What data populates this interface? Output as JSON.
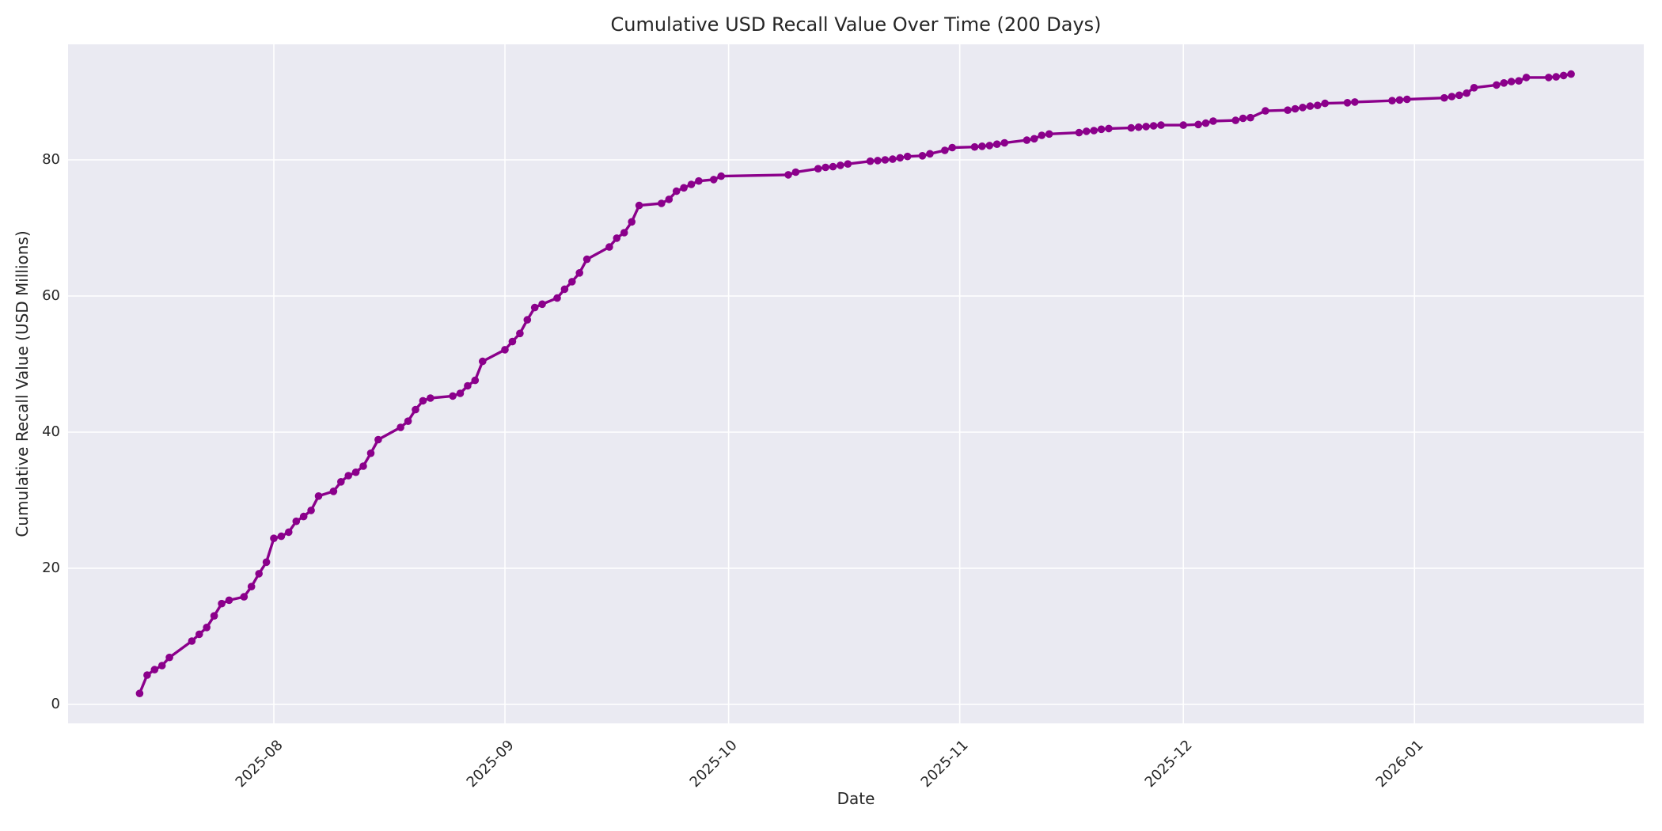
{
  "figure": {
    "title": "Cumulative USD Recall Value Over Time (200 Days)",
    "xlabel": "Date",
    "ylabel": "Cumulative Recall Value (USD Millions)"
  },
  "style": {
    "line_color": "#8B008B",
    "marker_color": "#8B008B",
    "plot_background": "#EAEAF2",
    "grid_color": "#FFFFFF",
    "text_color": "#262626",
    "outer_background": "#FFFFFF"
  },
  "chart_data": {
    "type": "line",
    "title": "Cumulative USD Recall Value Over Time (200 Days)",
    "xlabel": "Date",
    "ylabel": "Cumulative Recall Value (USD Millions)",
    "grid": true,
    "legend_position": "none",
    "marker": "circle",
    "x_tick_labels": [
      "2025-08",
      "2025-09",
      "2025-10",
      "2025-11",
      "2025-12",
      "2026-01"
    ],
    "y_ticks": [
      0,
      20,
      40,
      60,
      80
    ],
    "ylim": [
      -3.1,
      97.2
    ],
    "xlim": [
      "2025-07-04",
      "2026-02-01"
    ],
    "series": [
      {
        "name": "cumulative_recall_value",
        "points": [
          [
            "2025-07-14",
            1.6
          ],
          [
            "2025-07-15",
            4.3
          ],
          [
            "2025-07-16",
            5.1
          ],
          [
            "2025-07-17",
            5.7
          ],
          [
            "2025-07-18",
            6.9
          ],
          [
            "2025-07-21",
            9.3
          ],
          [
            "2025-07-22",
            10.3
          ],
          [
            "2025-07-23",
            11.3
          ],
          [
            "2025-07-24",
            13.0
          ],
          [
            "2025-07-25",
            14.8
          ],
          [
            "2025-07-26",
            15.3
          ],
          [
            "2025-07-28",
            15.8
          ],
          [
            "2025-07-29",
            17.3
          ],
          [
            "2025-07-30",
            19.2
          ],
          [
            "2025-07-31",
            20.9
          ],
          [
            "2025-08-01",
            24.4
          ],
          [
            "2025-08-02",
            24.7
          ],
          [
            "2025-08-03",
            25.3
          ],
          [
            "2025-08-04",
            26.9
          ],
          [
            "2025-08-05",
            27.6
          ],
          [
            "2025-08-06",
            28.5
          ],
          [
            "2025-08-07",
            30.6
          ],
          [
            "2025-08-09",
            31.3
          ],
          [
            "2025-08-10",
            32.7
          ],
          [
            "2025-08-11",
            33.6
          ],
          [
            "2025-08-12",
            34.1
          ],
          [
            "2025-08-13",
            35.0
          ],
          [
            "2025-08-14",
            36.9
          ],
          [
            "2025-08-15",
            38.9
          ],
          [
            "2025-08-18",
            40.7
          ],
          [
            "2025-08-19",
            41.6
          ],
          [
            "2025-08-20",
            43.3
          ],
          [
            "2025-08-21",
            44.6
          ],
          [
            "2025-08-22",
            45.0
          ],
          [
            "2025-08-25",
            45.3
          ],
          [
            "2025-08-26",
            45.7
          ],
          [
            "2025-08-27",
            46.8
          ],
          [
            "2025-08-28",
            47.6
          ],
          [
            "2025-08-29",
            50.4
          ],
          [
            "2025-09-01",
            52.1
          ],
          [
            "2025-09-02",
            53.3
          ],
          [
            "2025-09-03",
            54.5
          ],
          [
            "2025-09-04",
            56.5
          ],
          [
            "2025-09-05",
            58.3
          ],
          [
            "2025-09-06",
            58.8
          ],
          [
            "2025-09-08",
            59.7
          ],
          [
            "2025-09-09",
            61.0
          ],
          [
            "2025-09-10",
            62.1
          ],
          [
            "2025-09-11",
            63.4
          ],
          [
            "2025-09-12",
            65.4
          ],
          [
            "2025-09-15",
            67.2
          ],
          [
            "2025-09-16",
            68.5
          ],
          [
            "2025-09-17",
            69.3
          ],
          [
            "2025-09-18",
            70.9
          ],
          [
            "2025-09-19",
            73.3
          ],
          [
            "2025-09-22",
            73.6
          ],
          [
            "2025-09-23",
            74.2
          ],
          [
            "2025-09-24",
            75.4
          ],
          [
            "2025-09-25",
            75.9
          ],
          [
            "2025-09-26",
            76.4
          ],
          [
            "2025-09-27",
            76.9
          ],
          [
            "2025-09-29",
            77.1
          ],
          [
            "2025-09-30",
            77.6
          ],
          [
            "2025-10-09",
            77.8
          ],
          [
            "2025-10-10",
            78.2
          ],
          [
            "2025-10-13",
            78.7
          ],
          [
            "2025-10-14",
            78.9
          ],
          [
            "2025-10-15",
            79.0
          ],
          [
            "2025-10-16",
            79.2
          ],
          [
            "2025-10-17",
            79.4
          ],
          [
            "2025-10-20",
            79.8
          ],
          [
            "2025-10-21",
            79.9
          ],
          [
            "2025-10-22",
            80.0
          ],
          [
            "2025-10-23",
            80.1
          ],
          [
            "2025-10-24",
            80.3
          ],
          [
            "2025-10-25",
            80.5
          ],
          [
            "2025-10-27",
            80.6
          ],
          [
            "2025-10-28",
            80.9
          ],
          [
            "2025-10-30",
            81.4
          ],
          [
            "2025-10-31",
            81.8
          ],
          [
            "2025-11-03",
            81.9
          ],
          [
            "2025-11-04",
            82.0
          ],
          [
            "2025-11-05",
            82.1
          ],
          [
            "2025-11-06",
            82.3
          ],
          [
            "2025-11-07",
            82.5
          ],
          [
            "2025-11-10",
            82.9
          ],
          [
            "2025-11-11",
            83.1
          ],
          [
            "2025-11-12",
            83.6
          ],
          [
            "2025-11-13",
            83.8
          ],
          [
            "2025-11-17",
            84.0
          ],
          [
            "2025-11-18",
            84.2
          ],
          [
            "2025-11-19",
            84.3
          ],
          [
            "2025-11-20",
            84.5
          ],
          [
            "2025-11-21",
            84.6
          ],
          [
            "2025-11-24",
            84.7
          ],
          [
            "2025-11-25",
            84.8
          ],
          [
            "2025-11-26",
            84.9
          ],
          [
            "2025-11-27",
            85.0
          ],
          [
            "2025-11-28",
            85.1
          ],
          [
            "2025-12-01",
            85.1
          ],
          [
            "2025-12-03",
            85.2
          ],
          [
            "2025-12-04",
            85.4
          ],
          [
            "2025-12-05",
            85.7
          ],
          [
            "2025-12-08",
            85.8
          ],
          [
            "2025-12-09",
            86.1
          ],
          [
            "2025-12-10",
            86.2
          ],
          [
            "2025-12-12",
            87.2
          ],
          [
            "2025-12-15",
            87.3
          ],
          [
            "2025-12-16",
            87.5
          ],
          [
            "2025-12-17",
            87.7
          ],
          [
            "2025-12-18",
            87.9
          ],
          [
            "2025-12-19",
            88.0
          ],
          [
            "2025-12-20",
            88.3
          ],
          [
            "2025-12-23",
            88.4
          ],
          [
            "2025-12-24",
            88.5
          ],
          [
            "2025-12-29",
            88.7
          ],
          [
            "2025-12-30",
            88.8
          ],
          [
            "2025-12-31",
            88.9
          ],
          [
            "2026-01-05",
            89.1
          ],
          [
            "2026-01-06",
            89.3
          ],
          [
            "2026-01-07",
            89.5
          ],
          [
            "2026-01-08",
            89.8
          ],
          [
            "2026-01-09",
            90.6
          ],
          [
            "2026-01-12",
            91.0
          ],
          [
            "2026-01-13",
            91.3
          ],
          [
            "2026-01-14",
            91.5
          ],
          [
            "2026-01-15",
            91.6
          ],
          [
            "2026-01-16",
            92.1
          ],
          [
            "2026-01-19",
            92.1
          ],
          [
            "2026-01-20",
            92.2
          ],
          [
            "2026-01-21",
            92.4
          ],
          [
            "2026-01-22",
            92.6
          ]
        ]
      }
    ]
  }
}
